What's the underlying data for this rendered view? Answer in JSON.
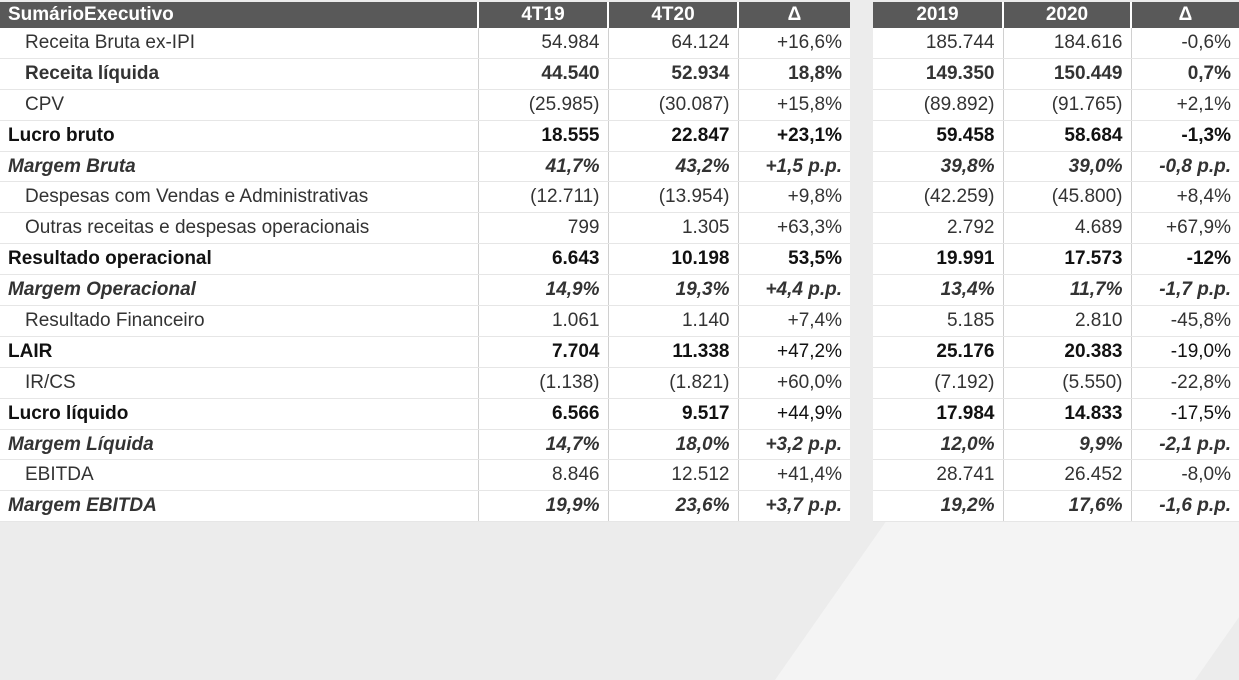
{
  "headers": {
    "label": "SumárioExecutivo",
    "q1": "4T19",
    "q2": "4T20",
    "qd": "Δ",
    "y1": "2019",
    "y2": "2020",
    "yd": "Δ"
  },
  "rows": [
    {
      "label": "Receita Bruta ex-IPI",
      "q1": "54.984",
      "q2": "64.124",
      "qd": "+16,6%",
      "y1": "185.744",
      "y2": "184.616",
      "yd": "-0,6%"
    },
    {
      "label": "Receita líquida",
      "q1": "44.540",
      "q2": "52.934",
      "qd": "18,8%",
      "y1": "149.350",
      "y2": "150.449",
      "yd": "0,7%"
    },
    {
      "label": "CPV",
      "q1": "(25.985)",
      "q2": "(30.087)",
      "qd": "+15,8%",
      "y1": "(89.892)",
      "y2": "(91.765)",
      "yd": "+2,1%"
    },
    {
      "label": "Lucro bruto",
      "q1": "18.555",
      "q2": "22.847",
      "qd": "+23,1%",
      "y1": "59.458",
      "y2": "58.684",
      "yd": "-1,3%"
    },
    {
      "label": "Margem Bruta",
      "q1": "41,7%",
      "q2": "43,2%",
      "qd": "+1,5 p.p.",
      "y1": "39,8%",
      "y2": "39,0%",
      "yd": "-0,8 p.p."
    },
    {
      "label": "Despesas com Vendas e Administrativas",
      "q1": "(12.711)",
      "q2": "(13.954)",
      "qd": "+9,8%",
      "y1": "(42.259)",
      "y2": "(45.800)",
      "yd": "+8,4%"
    },
    {
      "label": "Outras receitas e despesas operacionais",
      "q1": "799",
      "q2": "1.305",
      "qd": "+63,3%",
      "y1": "2.792",
      "y2": "4.689",
      "yd": "+67,9%"
    },
    {
      "label": "Resultado operacional",
      "q1": "6.643",
      "q2": "10.198",
      "qd": "53,5%",
      "y1": "19.991",
      "y2": "17.573",
      "yd": "-12%"
    },
    {
      "label": "Margem Operacional",
      "q1": "14,9%",
      "q2": "19,3%",
      "qd": "+4,4 p.p.",
      "y1": "13,4%",
      "y2": "11,7%",
      "yd": "-1,7 p.p."
    },
    {
      "label": "Resultado Financeiro",
      "q1": "1.061",
      "q2": "1.140",
      "qd": "+7,4%",
      "y1": "5.185",
      "y2": "2.810",
      "yd": "-45,8%"
    },
    {
      "label": "LAIR",
      "q1": "7.704",
      "q2": "11.338",
      "qd": "+47,2%",
      "y1": "25.176",
      "y2": "20.383",
      "yd": "-19,0%"
    },
    {
      "label": "IR/CS",
      "q1": "(1.138)",
      "q2": "(1.821)",
      "qd": "+60,0%",
      "y1": "(7.192)",
      "y2": "(5.550)",
      "yd": "-22,8%"
    },
    {
      "label": "Lucro líquido",
      "q1": "6.566",
      "q2": "9.517",
      "qd": "+44,9%",
      "y1": "17.984",
      "y2": "14.833",
      "yd": "-17,5%"
    },
    {
      "label": "Margem Líquida",
      "q1": "14,7%",
      "q2": "18,0%",
      "qd": "+3,2 p.p.",
      "y1": "12,0%",
      "y2": "9,9%",
      "yd": "-2,1 p.p."
    },
    {
      "label": "EBITDA",
      "q1": "8.846",
      "q2": "12.512",
      "qd": "+41,4%",
      "y1": "28.741",
      "y2": "26.452",
      "yd": "-8,0%"
    },
    {
      "label": "Margem EBITDA",
      "q1": "19,9%",
      "q2": "23,6%",
      "qd": "+3,7 p.p.",
      "y1": "19,2%",
      "y2": "17,6%",
      "yd": "-1,6 p.p."
    }
  ]
}
